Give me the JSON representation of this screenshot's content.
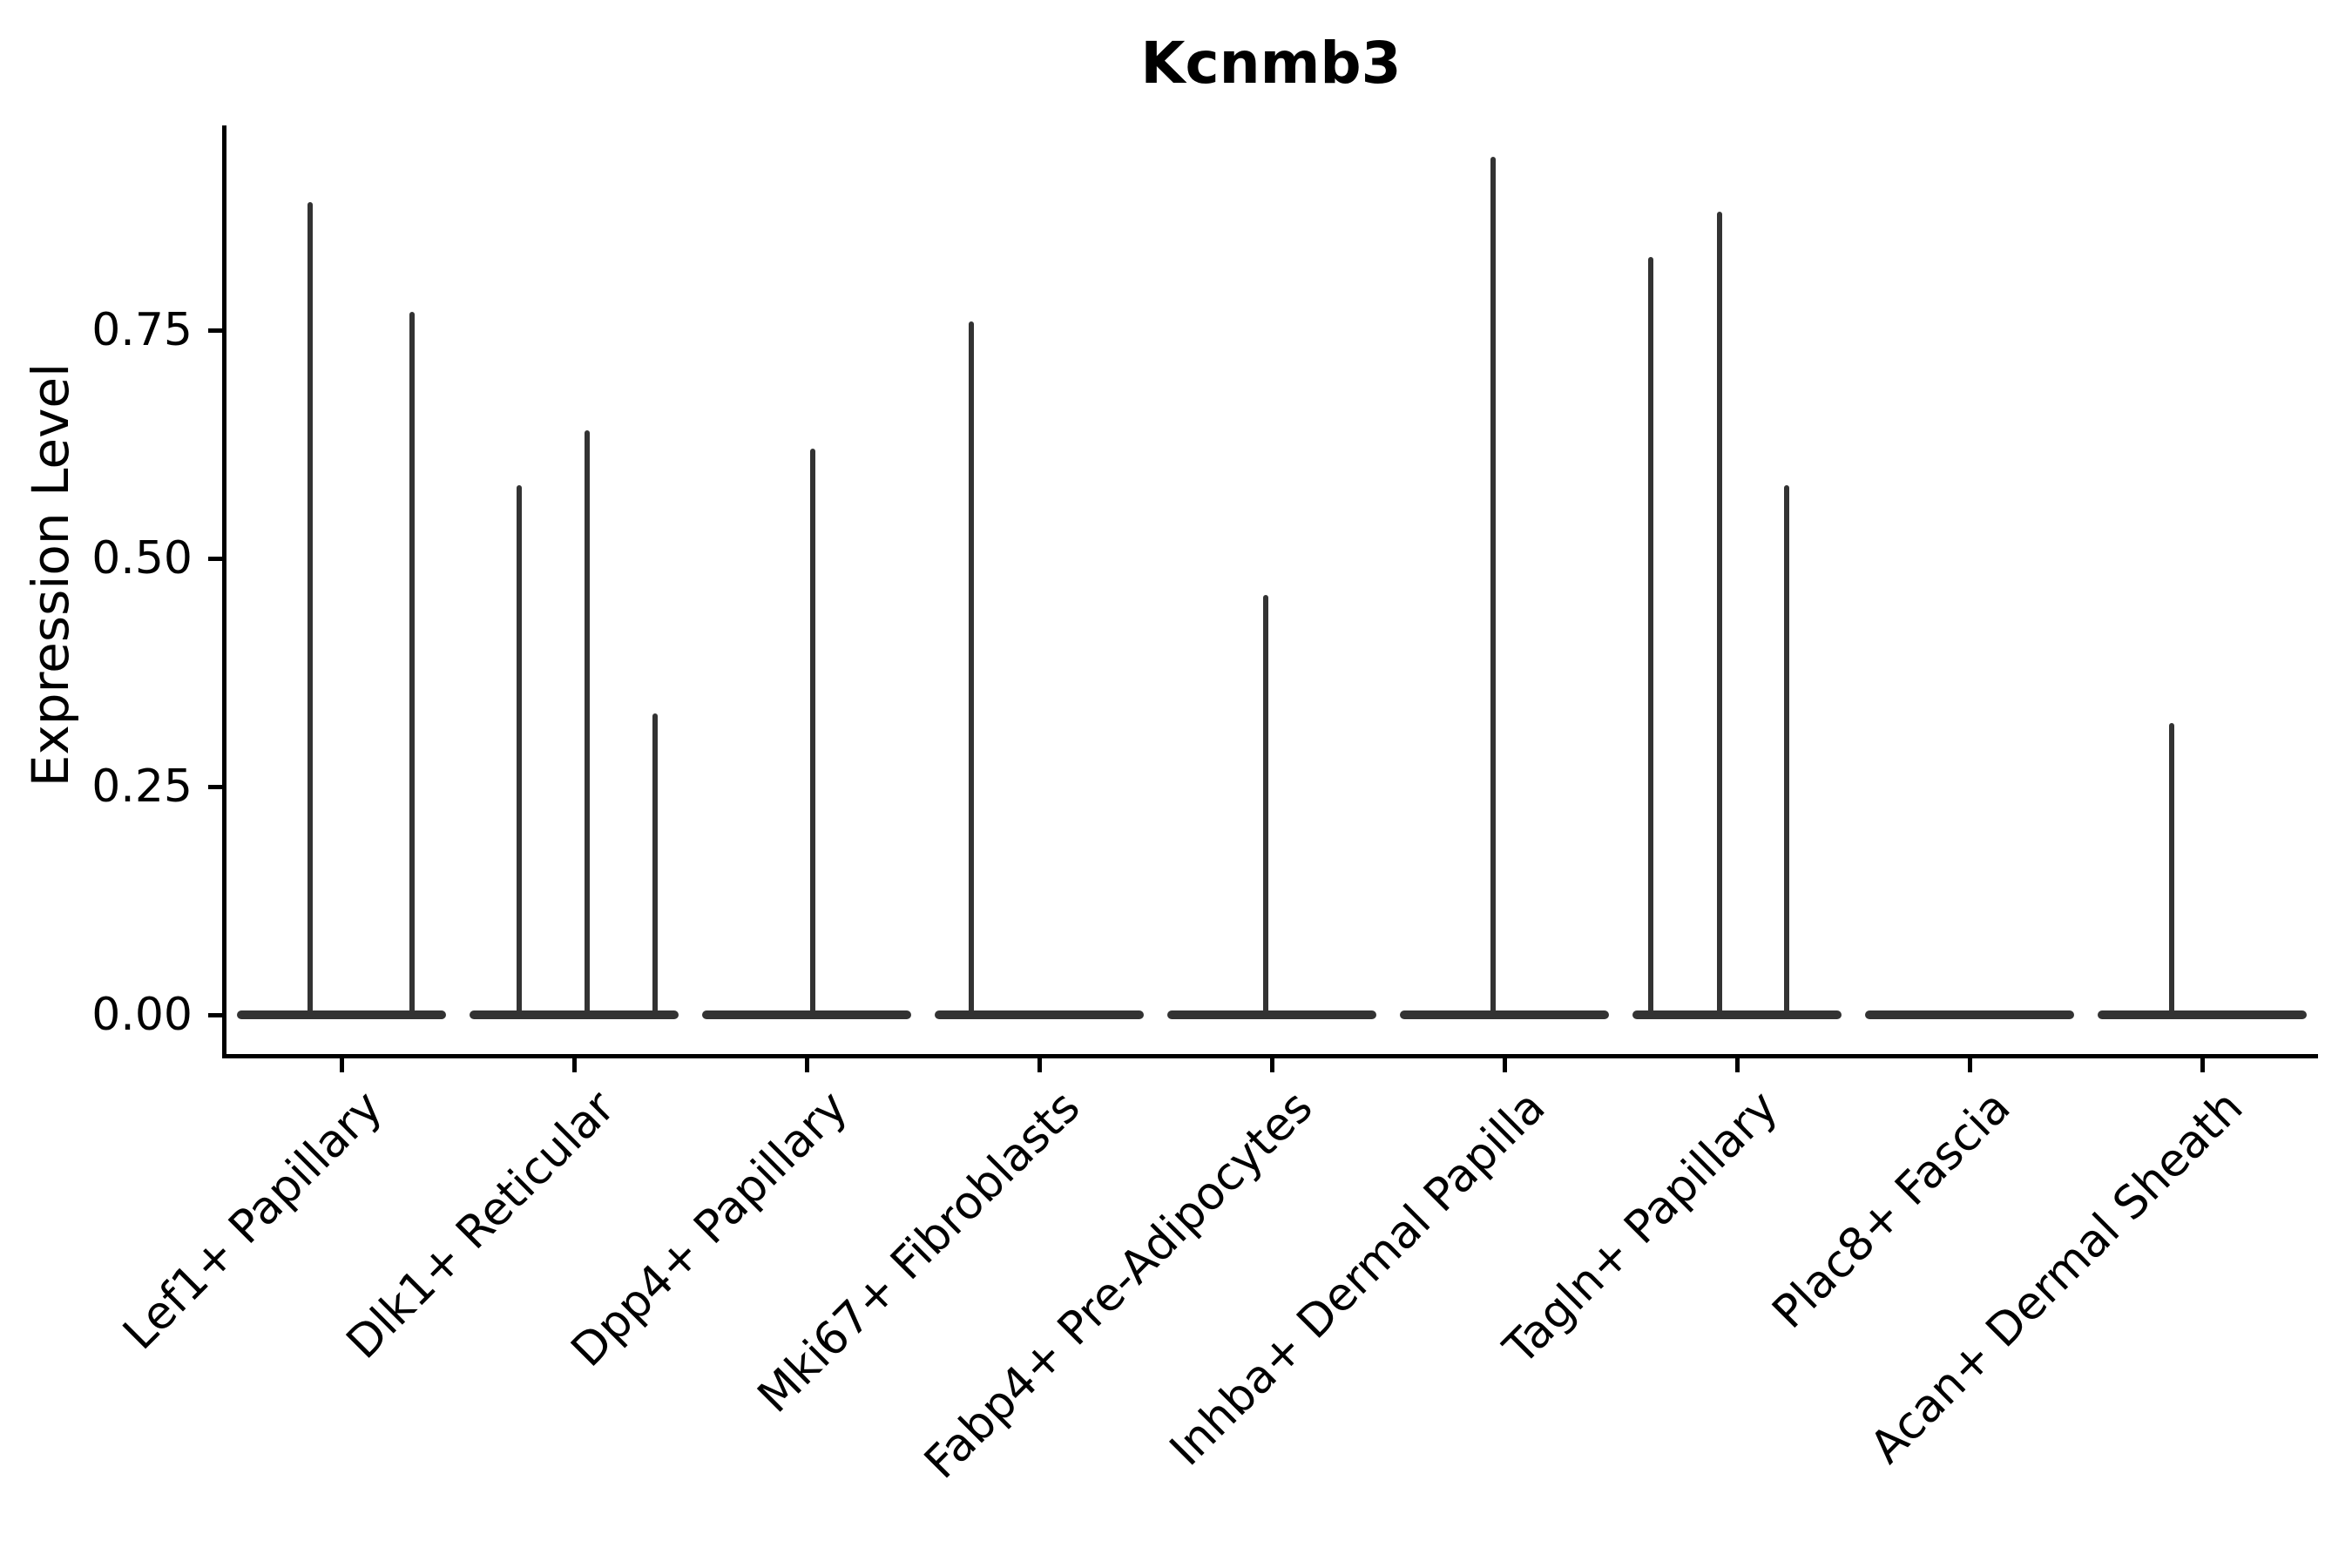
{
  "chart_data": {
    "type": "violin",
    "title": "Kcnmb3",
    "xlabel": "",
    "ylabel": "Expression Level",
    "ylim": [
      0,
      0.975
    ],
    "grid": false,
    "legend": "none",
    "yticks": [
      {
        "label": "0.00",
        "value": 0.0
      },
      {
        "label": "0.25",
        "value": 0.25
      },
      {
        "label": "0.50",
        "value": 0.5
      },
      {
        "label": "0.75",
        "value": 0.75
      }
    ],
    "categories": [
      "Lef1+ Papillary",
      "Dlk1+ Reticular",
      "Dpp4+ Papillary",
      "Mki67+ Fibroblasts",
      "Fabp4+ Pre-Adipocytes",
      "Inhba+ Dermal Papilla",
      "Tagln+ Papillary",
      "Plac8+ Fascia",
      "Acan+ Dermal Sheath"
    ],
    "groups": [
      {
        "label": "Lef1+ Papillary",
        "baseline": 0,
        "spikes": [
          {
            "dx": -36,
            "value": 0.89
          },
          {
            "dx": 81,
            "value": 0.77
          }
        ]
      },
      {
        "label": "Dlk1+ Reticular",
        "baseline": 0,
        "spikes": [
          {
            "dx": -63,
            "value": 0.58
          },
          {
            "dx": 15,
            "value": 0.64
          },
          {
            "dx": 93,
            "value": 0.33
          }
        ]
      },
      {
        "label": "Dpp4+ Papillary",
        "baseline": 0,
        "spikes": [
          {
            "dx": 7,
            "value": 0.62
          }
        ]
      },
      {
        "label": "Mki67+ Fibroblasts",
        "baseline": 0,
        "spikes": [
          {
            "dx": -78,
            "value": 0.76
          }
        ]
      },
      {
        "label": "Fabp4+ Pre-Adipocytes",
        "baseline": 0,
        "spikes": [
          {
            "dx": -7,
            "value": 0.46
          }
        ]
      },
      {
        "label": "Inhba+ Dermal Papilla",
        "baseline": 0,
        "spikes": [
          {
            "dx": -13,
            "value": 0.94
          }
        ]
      },
      {
        "label": "Tagln+ Papillary",
        "baseline": 0,
        "spikes": [
          {
            "dx": -99,
            "value": 0.83
          },
          {
            "dx": -20,
            "value": 0.88
          },
          {
            "dx": 57,
            "value": 0.58
          }
        ]
      },
      {
        "label": "Plac8+ Fascia",
        "baseline": 0,
        "spikes": []
      },
      {
        "label": "Acan+ Dermal Sheath",
        "baseline": 0,
        "spikes": [
          {
            "dx": -35,
            "value": 0.32
          }
        ]
      }
    ],
    "colors": {
      "violin_line": "#333333",
      "axis": "#000000",
      "background": "#ffffff",
      "text": "#000000"
    }
  }
}
